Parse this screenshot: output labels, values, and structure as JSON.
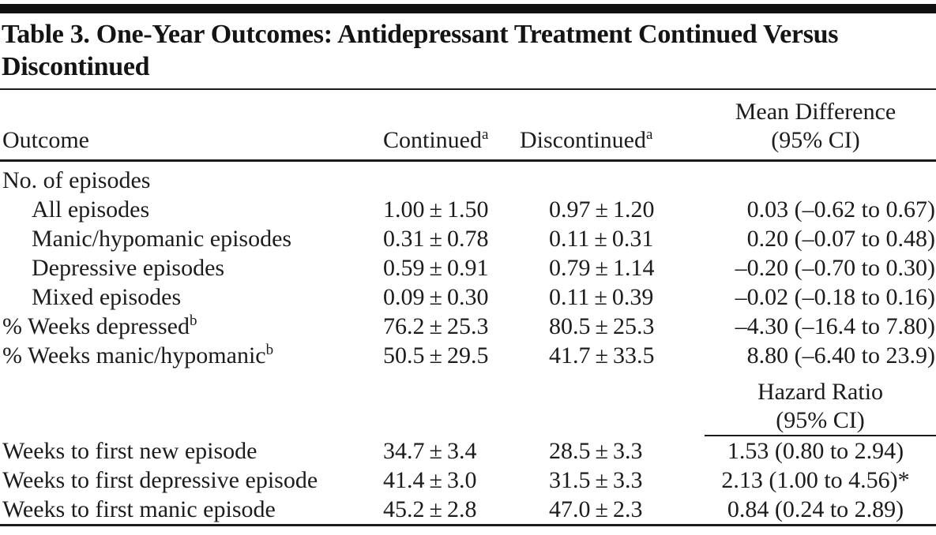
{
  "colors": {
    "background": "#ffffff",
    "text": "#1c1c1c",
    "top_bar": "#101010",
    "rules": "#1c1c1c"
  },
  "title": "Table 3. One-Year Outcomes: Antidepressant Treatment Continued Versus Discontinued",
  "header": {
    "outcome": "Outcome",
    "continued": "Continued",
    "continued_footnote": "a",
    "discontinued": "Discontinued",
    "discontinued_footnote": "a",
    "effect_line1": "Mean Difference",
    "effect_line2": "(95% CI)"
  },
  "rows": [
    {
      "type": "group",
      "label": "No. of episodes",
      "sup": "",
      "indent": false,
      "continued": "",
      "discontinued": "",
      "effect": "",
      "effect_align": "right"
    },
    {
      "type": "data",
      "label": "All episodes",
      "sup": "",
      "indent": true,
      "continued": "1.00 ± 1.50",
      "discontinued": "0.97 ± 1.20",
      "effect": "0.03 (–0.62 to 0.67)",
      "effect_align": "right"
    },
    {
      "type": "data",
      "label": "Manic/hypomanic episodes",
      "sup": "",
      "indent": true,
      "continued": "0.31 ± 0.78",
      "discontinued": "0.11 ± 0.31",
      "effect": "0.20 (–0.07 to 0.48)",
      "effect_align": "right"
    },
    {
      "type": "data",
      "label": "Depressive episodes",
      "sup": "",
      "indent": true,
      "continued": "0.59 ± 0.91",
      "discontinued": "0.79 ± 1.14",
      "effect": "–0.20 (–0.70 to 0.30)",
      "effect_align": "right"
    },
    {
      "type": "data",
      "label": "Mixed episodes",
      "sup": "",
      "indent": true,
      "continued": "0.09 ± 0.30",
      "discontinued": "0.11 ± 0.39",
      "effect": "–0.02 (–0.18 to 0.16)",
      "effect_align": "right"
    },
    {
      "type": "data",
      "label": "% Weeks depressed",
      "sup": "b",
      "indent": false,
      "continued": "76.2 ± 25.3",
      "discontinued": "80.5 ± 25.3",
      "effect": "–4.30 (–16.4 to 7.80)",
      "effect_align": "right"
    },
    {
      "type": "data",
      "label": "% Weeks manic/hypomanic",
      "sup": "b",
      "indent": false,
      "continued": "50.5 ± 29.5",
      "discontinued": "41.7 ± 33.5",
      "effect": "8.80 (–6.40 to 23.9)",
      "effect_align": "right"
    },
    {
      "type": "subheader",
      "line1": "Hazard Ratio",
      "line2": "(95% CI)"
    },
    {
      "type": "data",
      "label": "Weeks to first new episode",
      "sup": "",
      "indent": false,
      "continued": "34.7 ± 3.4",
      "discontinued": "28.5 ± 3.3",
      "effect": "1.53 (0.80 to 2.94)",
      "effect_align": "center"
    },
    {
      "type": "data",
      "label": "Weeks to first depressive episode",
      "sup": "",
      "indent": false,
      "continued": "41.4 ± 3.0",
      "discontinued": "31.5 ± 3.3",
      "effect": "2.13 (1.00 to 4.56)*",
      "effect_align": "center"
    },
    {
      "type": "data",
      "label": "Weeks to first manic episode",
      "sup": "",
      "indent": false,
      "continued": "45.2 ± 2.8",
      "discontinued": "47.0 ± 2.3",
      "effect": "0.84 (0.24 to 2.89)",
      "effect_align": "center"
    }
  ]
}
